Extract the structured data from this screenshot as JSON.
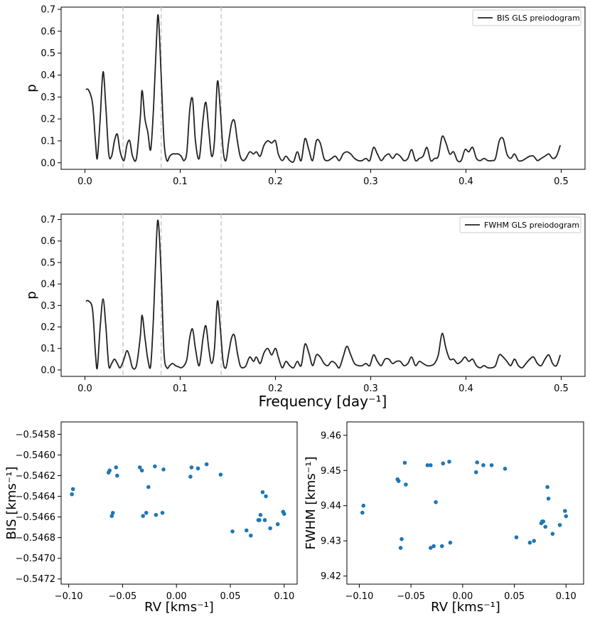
{
  "chart_data": [
    {
      "type": "line",
      "id": "bis-periodogram",
      "title": "",
      "xlabel": "",
      "ylabel": "p",
      "xlim": [
        -0.025,
        0.525
      ],
      "ylim": [
        -0.03,
        0.71
      ],
      "xticks": [
        0.0,
        0.1,
        0.2,
        0.3,
        0.4,
        0.5
      ],
      "xtick_labels": [
        "0.0",
        "0.1",
        "0.2",
        "0.3",
        "0.4",
        "0.5"
      ],
      "yticks": [
        0.0,
        0.1,
        0.2,
        0.3,
        0.4,
        0.5,
        0.6,
        0.7
      ],
      "ytick_labels": [
        "0.0",
        "0.1",
        "0.2",
        "0.3",
        "0.4",
        "0.5",
        "0.6",
        "0.7"
      ],
      "vlines": [
        0.04,
        0.08,
        0.143
      ],
      "legend": "BIS GLS preiodogram",
      "legend_loc": "top-right",
      "series": [
        {
          "name": "BIS GLS preiodogram",
          "color": "#222222",
          "x": [
            0.001,
            0.004,
            0.008,
            0.011,
            0.013,
            0.016,
            0.019,
            0.022,
            0.025,
            0.028,
            0.031,
            0.034,
            0.037,
            0.041,
            0.044,
            0.047,
            0.05,
            0.054,
            0.058,
            0.06,
            0.063,
            0.066,
            0.069,
            0.072,
            0.075,
            0.077,
            0.08,
            0.083,
            0.086,
            0.089,
            0.092,
            0.095,
            0.098,
            0.101,
            0.104,
            0.107,
            0.11,
            0.113,
            0.116,
            0.12,
            0.124,
            0.127,
            0.13,
            0.133,
            0.136,
            0.139,
            0.142,
            0.145,
            0.148,
            0.151,
            0.154,
            0.157,
            0.16,
            0.163,
            0.166,
            0.169,
            0.173,
            0.177,
            0.18,
            0.184,
            0.188,
            0.192,
            0.196,
            0.2,
            0.203,
            0.207,
            0.211,
            0.215,
            0.219,
            0.223,
            0.227,
            0.231,
            0.235,
            0.239,
            0.243,
            0.247,
            0.251,
            0.255,
            0.259,
            0.263,
            0.267,
            0.271,
            0.275,
            0.279,
            0.283,
            0.287,
            0.291,
            0.295,
            0.299,
            0.303,
            0.307,
            0.311,
            0.315,
            0.319,
            0.323,
            0.327,
            0.331,
            0.335,
            0.339,
            0.343,
            0.347,
            0.351,
            0.355,
            0.359,
            0.363,
            0.367,
            0.371,
            0.375,
            0.379,
            0.383,
            0.387,
            0.391,
            0.395,
            0.399,
            0.403,
            0.407,
            0.411,
            0.415,
            0.419,
            0.423,
            0.427,
            0.431,
            0.435,
            0.439,
            0.443,
            0.447,
            0.451,
            0.455,
            0.459,
            0.463,
            0.467,
            0.471,
            0.475,
            0.479,
            0.483,
            0.487,
            0.491,
            0.495,
            0.499
          ],
          "y": [
            0.335,
            0.33,
            0.27,
            0.1,
            0.02,
            0.2,
            0.415,
            0.25,
            0.04,
            0.03,
            0.1,
            0.13,
            0.05,
            0.01,
            0.08,
            0.1,
            0.03,
            0.02,
            0.2,
            0.33,
            0.2,
            0.14,
            0.06,
            0.25,
            0.55,
            0.67,
            0.4,
            0.1,
            0.01,
            0.03,
            0.04,
            0.04,
            0.04,
            0.03,
            0.01,
            0.05,
            0.24,
            0.29,
            0.1,
            0.02,
            0.2,
            0.275,
            0.15,
            0.03,
            0.1,
            0.37,
            0.25,
            0.06,
            0.01,
            0.1,
            0.18,
            0.19,
            0.1,
            0.03,
            0.01,
            0.02,
            0.05,
            0.04,
            0.05,
            0.03,
            0.08,
            0.1,
            0.09,
            0.1,
            0.04,
            0.01,
            0.03,
            0.01,
            0.005,
            0.05,
            0.01,
            0.11,
            0.06,
            0.01,
            0.1,
            0.09,
            0.02,
            0.01,
            0.02,
            0.03,
            0.01,
            0.04,
            0.05,
            0.04,
            0.02,
            0.01,
            0.01,
            0.02,
            0.01,
            0.07,
            0.04,
            0.01,
            0.03,
            0.04,
            0.02,
            0.04,
            0.03,
            0.01,
            0.02,
            0.06,
            0.01,
            0.02,
            0.03,
            0.07,
            0.01,
            0.02,
            0.03,
            0.12,
            0.09,
            0.04,
            0.05,
            0.01,
            0.01,
            0.06,
            0.05,
            0.07,
            0.02,
            0.01,
            0.02,
            0.01,
            0.01,
            0.02,
            0.1,
            0.11,
            0.04,
            0.02,
            0.04,
            0.01,
            0.01,
            0.02,
            0.03,
            0.03,
            0.01,
            0.02,
            0.03,
            0.04,
            0.02,
            0.03,
            0.08
          ]
        }
      ]
    },
    {
      "type": "line",
      "id": "fwhm-periodogram",
      "title": "",
      "xlabel": "Frequency [day⁻¹]",
      "ylabel": "p",
      "xlim": [
        -0.025,
        0.525
      ],
      "ylim": [
        -0.03,
        0.725
      ],
      "xticks": [
        0.0,
        0.1,
        0.2,
        0.3,
        0.4,
        0.5
      ],
      "xtick_labels": [
        "0.0",
        "0.1",
        "0.2",
        "0.3",
        "0.4",
        "0.5"
      ],
      "yticks": [
        0.0,
        0.1,
        0.2,
        0.3,
        0.4,
        0.5,
        0.6,
        0.7
      ],
      "ytick_labels": [
        "0.0",
        "0.1",
        "0.2",
        "0.3",
        "0.4",
        "0.5",
        "0.6",
        "0.7"
      ],
      "vlines": [
        0.04,
        0.08,
        0.143
      ],
      "legend": "FWHM GLS preiodogram",
      "legend_loc": "top-right",
      "series": [
        {
          "name": "FWHM GLS preiodogram",
          "color": "#222222",
          "x": [
            0.001,
            0.004,
            0.008,
            0.011,
            0.013,
            0.016,
            0.019,
            0.022,
            0.025,
            0.028,
            0.031,
            0.034,
            0.037,
            0.041,
            0.044,
            0.047,
            0.05,
            0.054,
            0.058,
            0.06,
            0.063,
            0.066,
            0.069,
            0.072,
            0.075,
            0.077,
            0.08,
            0.083,
            0.086,
            0.089,
            0.092,
            0.095,
            0.098,
            0.101,
            0.104,
            0.107,
            0.11,
            0.113,
            0.116,
            0.12,
            0.124,
            0.127,
            0.13,
            0.133,
            0.136,
            0.139,
            0.142,
            0.145,
            0.148,
            0.151,
            0.154,
            0.157,
            0.16,
            0.163,
            0.166,
            0.169,
            0.173,
            0.177,
            0.18,
            0.184,
            0.188,
            0.192,
            0.196,
            0.2,
            0.203,
            0.207,
            0.211,
            0.215,
            0.219,
            0.223,
            0.227,
            0.231,
            0.235,
            0.239,
            0.243,
            0.247,
            0.251,
            0.255,
            0.259,
            0.263,
            0.267,
            0.271,
            0.275,
            0.279,
            0.283,
            0.287,
            0.291,
            0.295,
            0.299,
            0.303,
            0.307,
            0.311,
            0.315,
            0.319,
            0.323,
            0.327,
            0.331,
            0.335,
            0.339,
            0.343,
            0.347,
            0.351,
            0.355,
            0.359,
            0.363,
            0.367,
            0.371,
            0.375,
            0.379,
            0.383,
            0.387,
            0.391,
            0.395,
            0.399,
            0.403,
            0.407,
            0.411,
            0.415,
            0.419,
            0.423,
            0.427,
            0.431,
            0.435,
            0.439,
            0.443,
            0.447,
            0.451,
            0.455,
            0.459,
            0.463,
            0.467,
            0.471,
            0.475,
            0.479,
            0.483,
            0.487,
            0.491,
            0.495,
            0.499
          ],
          "y": [
            0.32,
            0.32,
            0.28,
            0.08,
            0.01,
            0.2,
            0.33,
            0.2,
            0.02,
            0.03,
            0.05,
            0.03,
            0.01,
            0.05,
            0.09,
            0.06,
            0.01,
            0.02,
            0.15,
            0.255,
            0.15,
            0.05,
            0.02,
            0.25,
            0.6,
            0.69,
            0.45,
            0.08,
            0.01,
            0.02,
            0.03,
            0.02,
            0.015,
            0.01,
            0.02,
            0.05,
            0.15,
            0.19,
            0.1,
            0.02,
            0.15,
            0.205,
            0.1,
            0.03,
            0.1,
            0.32,
            0.2,
            0.04,
            0.01,
            0.08,
            0.15,
            0.16,
            0.08,
            0.02,
            0.01,
            0.02,
            0.06,
            0.04,
            0.06,
            0.03,
            0.08,
            0.1,
            0.07,
            0.1,
            0.06,
            0.01,
            0.04,
            0.02,
            0.01,
            0.04,
            0.02,
            0.12,
            0.08,
            0.02,
            0.07,
            0.06,
            0.03,
            0.02,
            0.04,
            0.03,
            0.01,
            0.06,
            0.11,
            0.07,
            0.03,
            0.02,
            0.02,
            0.03,
            0.02,
            0.07,
            0.04,
            0.02,
            0.05,
            0.05,
            0.03,
            0.04,
            0.04,
            0.02,
            0.03,
            0.06,
            0.02,
            0.04,
            0.03,
            0.02,
            0.02,
            0.03,
            0.07,
            0.17,
            0.1,
            0.05,
            0.05,
            0.03,
            0.04,
            0.06,
            0.04,
            0.05,
            0.02,
            0.01,
            0.02,
            0.01,
            0.01,
            0.02,
            0.07,
            0.06,
            0.04,
            0.02,
            0.05,
            0.02,
            0.01,
            0.03,
            0.05,
            0.06,
            0.03,
            0.02,
            0.05,
            0.07,
            0.03,
            0.02,
            0.07
          ]
        }
      ]
    },
    {
      "type": "scatter",
      "id": "bis-vs-rv",
      "title": "",
      "xlabel": "RV [kms⁻¹]",
      "ylabel": "BIS [kms⁻¹]",
      "xlim": [
        -0.107,
        0.112
      ],
      "ylim": [
        -0.54725,
        -0.54568
      ],
      "xticks": [
        -0.1,
        -0.05,
        0.0,
        0.05,
        0.1
      ],
      "xtick_labels": [
        "−0.10",
        "−0.05",
        "0.00",
        "0.05",
        "0.10"
      ],
      "yticks": [
        -0.5458,
        -0.546,
        -0.5462,
        -0.5464,
        -0.5466,
        -0.5468,
        -0.547,
        -0.5472
      ],
      "ytick_labels": [
        "−0.5458",
        "−0.5460",
        "−0.5462",
        "−0.5464",
        "−0.5466",
        "−0.5468",
        "−0.5470",
        "−0.5472"
      ],
      "series": [
        {
          "name": "BIS",
          "color": "#1f77b4",
          "x": [
            -0.097,
            -0.096,
            -0.063,
            -0.062,
            -0.06,
            -0.059,
            -0.056,
            -0.055,
            -0.034,
            -0.032,
            -0.031,
            -0.028,
            -0.026,
            -0.02,
            -0.019,
            -0.013,
            -0.012,
            0.013,
            0.014,
            0.02,
            0.028,
            0.041,
            0.052,
            0.065,
            0.069,
            0.076,
            0.077,
            0.078,
            0.08,
            0.082,
            0.083,
            0.087,
            0.094,
            0.099,
            0.1
          ],
          "y": [
            -0.54638,
            -0.54633,
            -0.54617,
            -0.54615,
            -0.54659,
            -0.54656,
            -0.54612,
            -0.5462,
            -0.54612,
            -0.54615,
            -0.54659,
            -0.54656,
            -0.54631,
            -0.54611,
            -0.54658,
            -0.54656,
            -0.54614,
            -0.54621,
            -0.54612,
            -0.54613,
            -0.54609,
            -0.54619,
            -0.54674,
            -0.54673,
            -0.54678,
            -0.54663,
            -0.54663,
            -0.54658,
            -0.54636,
            -0.54663,
            -0.5464,
            -0.54671,
            -0.54667,
            -0.54655,
            -0.54657
          ]
        }
      ]
    },
    {
      "type": "scatter",
      "id": "fwhm-vs-rv",
      "title": "",
      "xlabel": "RV [kms⁻¹]",
      "ylabel": "FWHM [kms⁻¹]",
      "xlim": [
        -0.112,
        0.117
      ],
      "ylim": [
        9.4177,
        9.4638
      ],
      "xticks": [
        -0.1,
        -0.05,
        0.0,
        0.05,
        0.1
      ],
      "xtick_labels": [
        "−0.10",
        "−0.05",
        "0.00",
        "0.05",
        "0.10"
      ],
      "yticks": [
        9.42,
        9.43,
        9.44,
        9.45,
        9.46
      ],
      "ytick_labels": [
        "9.42",
        "9.43",
        "9.44",
        "9.45",
        "9.46"
      ],
      "series": [
        {
          "name": "FWHM",
          "color": "#1f77b4",
          "x": [
            -0.097,
            -0.096,
            -0.063,
            -0.062,
            -0.06,
            -0.059,
            -0.056,
            -0.055,
            -0.034,
            -0.031,
            -0.031,
            -0.028,
            -0.026,
            -0.02,
            -0.019,
            -0.013,
            -0.012,
            0.013,
            0.014,
            0.02,
            0.028,
            0.041,
            0.052,
            0.065,
            0.069,
            0.076,
            0.077,
            0.078,
            0.08,
            0.082,
            0.083,
            0.087,
            0.094,
            0.099,
            0.1
          ],
          "y": [
            9.438,
            9.44,
            9.4475,
            9.447,
            9.428,
            9.4305,
            9.4522,
            9.446,
            9.4515,
            9.4515,
            9.428,
            9.4285,
            9.441,
            9.4285,
            9.452,
            9.4525,
            9.4295,
            9.4495,
            9.4523,
            9.4515,
            9.4515,
            9.4505,
            9.431,
            9.4295,
            9.43,
            9.435,
            9.4355,
            9.4355,
            9.434,
            9.4453,
            9.442,
            9.432,
            9.4345,
            9.4385,
            9.437
          ]
        }
      ]
    }
  ]
}
